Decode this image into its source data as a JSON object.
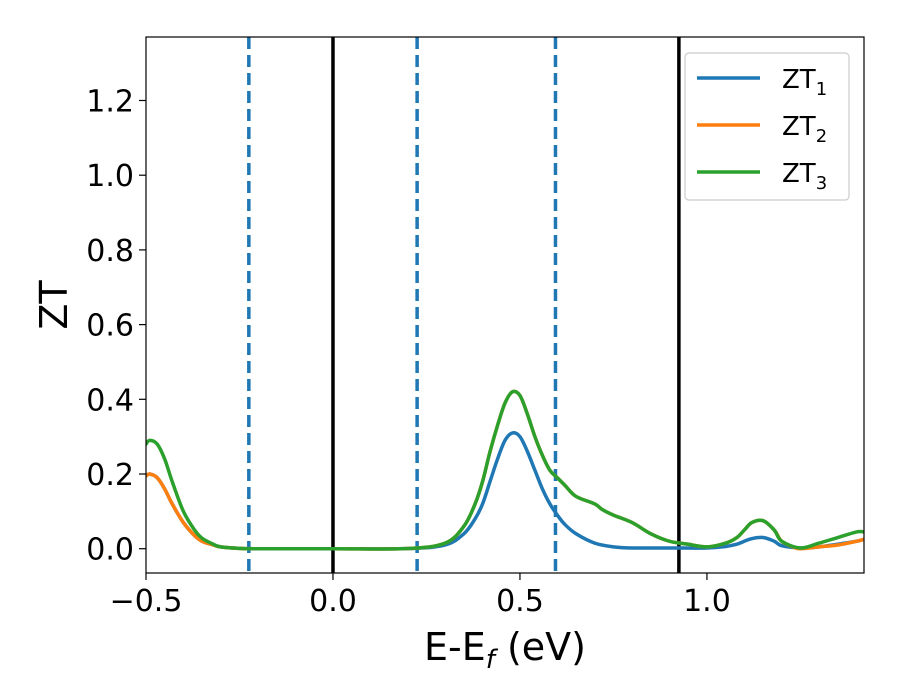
{
  "chart_data": {
    "type": "line",
    "xlabel": "E-E",
    "xlabel_sub": "f",
    "xlabel_unit": " (eV)",
    "ylabel": "ZT",
    "xlim": [
      -0.5,
      1.42
    ],
    "ylim": [
      -0.065,
      1.37
    ],
    "x_ticks": [
      -0.5,
      0.0,
      0.5,
      1.0
    ],
    "x_tick_labels": [
      "−0.5",
      "0.0",
      "0.5",
      "1.0"
    ],
    "y_ticks": [
      0.0,
      0.2,
      0.4,
      0.6,
      0.8,
      1.0,
      1.2
    ],
    "y_tick_labels": [
      "0.0",
      "0.2",
      "0.4",
      "0.6",
      "0.8",
      "1.0",
      "1.2"
    ],
    "grid": false,
    "legend_position": "top-right",
    "vlines_solid": [
      0.0,
      0.925
    ],
    "vlines_dashed": [
      -0.225,
      0.225,
      0.595
    ],
    "series": [
      {
        "name": "ZT",
        "name_sub": "1",
        "color": "#1f77b4",
        "x": [
          -0.5,
          -0.49,
          -0.47,
          -0.45,
          -0.43,
          -0.4,
          -0.37,
          -0.35,
          -0.32,
          -0.3,
          -0.25,
          -0.2,
          0.0,
          0.2,
          0.3,
          0.35,
          0.38,
          0.4,
          0.42,
          0.44,
          0.46,
          0.48,
          0.5,
          0.52,
          0.54,
          0.56,
          0.58,
          0.6,
          0.62,
          0.65,
          0.7,
          0.75,
          0.8,
          0.9,
          1.0,
          1.05,
          1.08,
          1.1,
          1.12,
          1.15,
          1.18,
          1.2,
          1.25,
          1.3,
          1.35,
          1.4,
          1.42
        ],
        "y": [
          0.195,
          0.2,
          0.19,
          0.16,
          0.12,
          0.07,
          0.035,
          0.02,
          0.01,
          0.005,
          0.001,
          0.0,
          0.0,
          0.0005,
          0.01,
          0.04,
          0.08,
          0.12,
          0.18,
          0.24,
          0.29,
          0.31,
          0.3,
          0.26,
          0.21,
          0.16,
          0.12,
          0.09,
          0.065,
          0.04,
          0.015,
          0.005,
          0.002,
          0.002,
          0.002,
          0.006,
          0.012,
          0.02,
          0.027,
          0.03,
          0.02,
          0.008,
          0.002,
          0.005,
          0.012,
          0.02,
          0.025
        ]
      },
      {
        "name": "ZT",
        "name_sub": "2",
        "color": "#ff7f0e",
        "x": [
          -0.5,
          -0.49,
          -0.47,
          -0.45,
          -0.43,
          -0.4,
          -0.37,
          -0.35,
          -0.32,
          -0.3,
          -0.25,
          -0.2,
          0.0,
          0.2,
          0.3,
          0.35,
          0.38,
          0.4,
          0.42,
          0.44,
          0.46,
          0.48,
          0.5,
          0.52,
          0.54,
          0.56,
          0.58,
          0.6,
          0.62,
          0.65,
          0.7,
          0.72,
          0.75,
          0.8,
          0.85,
          0.9,
          0.95,
          1.0,
          1.05,
          1.08,
          1.1,
          1.12,
          1.15,
          1.18,
          1.2,
          1.23,
          1.25,
          1.3,
          1.35,
          1.4,
          1.42
        ],
        "y": [
          0.195,
          0.2,
          0.19,
          0.16,
          0.12,
          0.07,
          0.035,
          0.02,
          0.01,
          0.005,
          0.001,
          0.0,
          0.0,
          0.0005,
          0.015,
          0.06,
          0.12,
          0.18,
          0.26,
          0.33,
          0.39,
          0.42,
          0.41,
          0.36,
          0.3,
          0.25,
          0.21,
          0.19,
          0.17,
          0.14,
          0.12,
          0.105,
          0.09,
          0.07,
          0.04,
          0.02,
          0.012,
          0.005,
          0.015,
          0.03,
          0.05,
          0.07,
          0.075,
          0.05,
          0.02,
          0.005,
          0.0,
          0.005,
          0.01,
          0.02,
          0.025
        ]
      },
      {
        "name": "ZT",
        "name_sub": "3",
        "color": "#2ca02c",
        "x": [
          -0.5,
          -0.49,
          -0.47,
          -0.45,
          -0.43,
          -0.4,
          -0.37,
          -0.35,
          -0.32,
          -0.3,
          -0.25,
          -0.2,
          0.0,
          0.2,
          0.3,
          0.35,
          0.38,
          0.4,
          0.42,
          0.44,
          0.46,
          0.48,
          0.5,
          0.52,
          0.54,
          0.56,
          0.58,
          0.6,
          0.62,
          0.65,
          0.7,
          0.72,
          0.75,
          0.8,
          0.85,
          0.9,
          0.95,
          1.0,
          1.05,
          1.08,
          1.1,
          1.12,
          1.15,
          1.18,
          1.2,
          1.25,
          1.3,
          1.35,
          1.4,
          1.42
        ],
        "y": [
          0.28,
          0.29,
          0.28,
          0.24,
          0.18,
          0.1,
          0.05,
          0.028,
          0.012,
          0.005,
          0.001,
          0.0,
          0.0,
          0.0005,
          0.015,
          0.06,
          0.12,
          0.18,
          0.26,
          0.33,
          0.39,
          0.42,
          0.41,
          0.36,
          0.3,
          0.25,
          0.21,
          0.19,
          0.17,
          0.14,
          0.12,
          0.105,
          0.09,
          0.07,
          0.04,
          0.02,
          0.012,
          0.005,
          0.015,
          0.03,
          0.05,
          0.07,
          0.075,
          0.05,
          0.02,
          0.002,
          0.015,
          0.03,
          0.045,
          0.045
        ]
      }
    ]
  }
}
